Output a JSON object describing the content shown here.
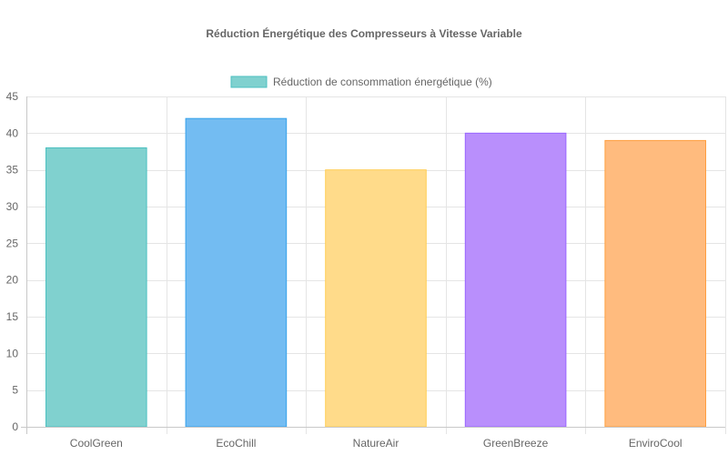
{
  "chart_data": {
    "type": "bar",
    "title": "Réduction Énergétique des Compresseurs à Vitesse Variable",
    "xlabel": "",
    "ylabel": "",
    "categories": [
      "CoolGreen",
      "EcoChill",
      "NatureAir",
      "GreenBreeze",
      "EnviroCool"
    ],
    "series": [
      {
        "name": "Réduction de consommation énergétique (%)",
        "values": [
          38,
          42,
          35,
          40,
          39
        ],
        "fill_colors": [
          "#80d1cf",
          "#73bcf2",
          "#ffdb8a",
          "#b98ffc",
          "#ffbb7e"
        ],
        "border_colors": [
          "#4bc0c0",
          "#36a2eb",
          "#ffce56",
          "#9966ff",
          "#ff9f40"
        ]
      }
    ],
    "ylim": [
      0,
      45
    ],
    "yticks": [
      0,
      5,
      10,
      15,
      20,
      25,
      30,
      35,
      40,
      45
    ],
    "grid": true,
    "legend": {
      "position": "top",
      "swatch_fill": "#80d1cf",
      "swatch_border": "#4bc0c0"
    },
    "colors": {
      "grid": "#e5e5e5",
      "axis": "#c8c8c8",
      "text": "#666666"
    }
  }
}
